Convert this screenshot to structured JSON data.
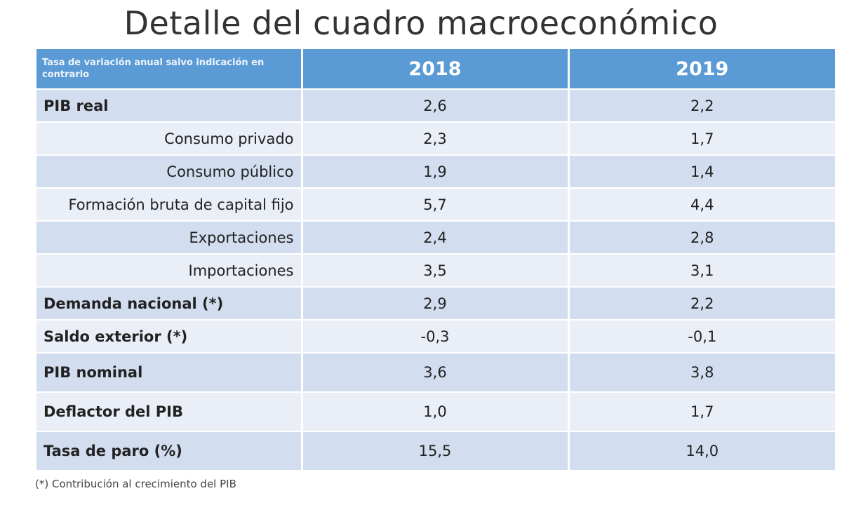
{
  "title": "Detalle del cuadro macroeconómico",
  "table": {
    "header_label": "Tasa de variación anual salvo indicación en contrario",
    "years": [
      "2018",
      "2019"
    ],
    "rows": [
      {
        "label": "PIB real",
        "v2018": "2,6",
        "v2019": "2,2"
      },
      {
        "label": "Consumo privado",
        "v2018": "2,3",
        "v2019": "1,7"
      },
      {
        "label": "Consumo público",
        "v2018": "1,9",
        "v2019": "1,4"
      },
      {
        "label": "Formación bruta de capital fijo",
        "v2018": "5,7",
        "v2019": "4,4"
      },
      {
        "label": "Exportaciones",
        "v2018": "2,4",
        "v2019": "2,8"
      },
      {
        "label": "Importaciones",
        "v2018": "3,5",
        "v2019": "3,1"
      },
      {
        "label": "Demanda nacional (*)",
        "v2018": "2,9",
        "v2019": "2,2"
      },
      {
        "label": "Saldo exterior (*)",
        "v2018": "-0,3",
        "v2019": "-0,1"
      },
      {
        "label": "PIB nominal",
        "v2018": "3,6",
        "v2019": "3,8"
      },
      {
        "label": "Deflactor del PIB",
        "v2018": "1,0",
        "v2019": "1,7"
      },
      {
        "label": "Tasa de paro (%)",
        "v2018": "15,5",
        "v2019": "14,0"
      }
    ]
  },
  "footnote": "(*) Contribución al crecimiento del PIB",
  "colors": {
    "header": "#5b9bd5",
    "row_dark": "#d2ddef",
    "row_light": "#e9eef7"
  }
}
